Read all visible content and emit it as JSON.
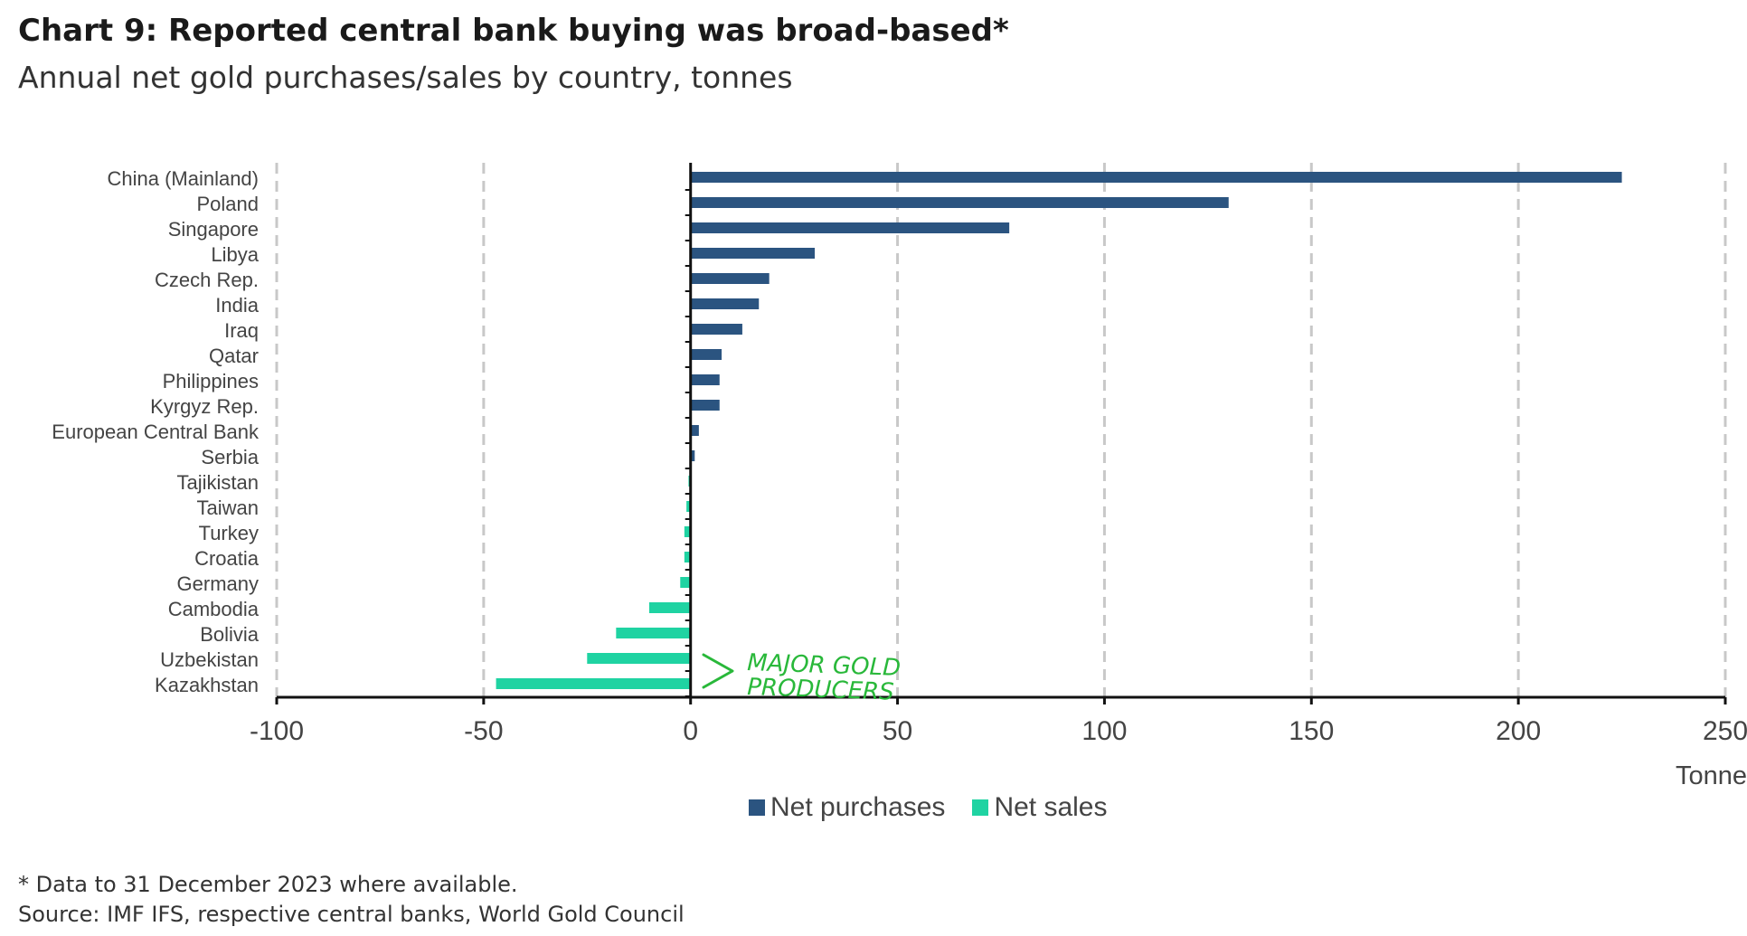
{
  "title": "Chart 9: Reported central bank buying was broad-based*",
  "subtitle": "Annual net gold purchases/sales by country, tonnes",
  "footnote": "* Data to 31 December 2023 where available.",
  "source": "Source: IMF IFS, respective central banks, World Gold Council",
  "annotation": "> MAJOR GOLD PRODUCERS",
  "colors": {
    "purchases": "#2b5480",
    "sales": "#1fd3a2",
    "annotation": "#29b83a"
  },
  "chart_data": {
    "type": "bar",
    "orientation": "horizontal",
    "categories": [
      "China (Mainland)",
      "Poland",
      "Singapore",
      "Libya",
      "Czech Rep.",
      "India",
      "Iraq",
      "Qatar",
      "Philippines",
      "Kyrgyz Rep.",
      "European Central Bank",
      "Serbia",
      "Tajikistan",
      "Taiwan",
      "Turkey",
      "Croatia",
      "Germany",
      "Cambodia",
      "Bolivia",
      "Uzbekistan",
      "Kazakhstan"
    ],
    "values": [
      225,
      130,
      77,
      30,
      19,
      16.5,
      12.5,
      7.5,
      7,
      7,
      2,
      1,
      -0.5,
      -1,
      -1.5,
      -1.5,
      -2.5,
      -10,
      -18,
      -25,
      -47
    ],
    "series": [
      {
        "name": "Net purchases",
        "color": "#2b5480"
      },
      {
        "name": "Net sales",
        "color": "#1fd3a2"
      }
    ],
    "xlim": [
      -100,
      250
    ],
    "xticks": [
      "-100",
      "-50",
      "0",
      "50",
      "100",
      "150",
      "200",
      "250"
    ],
    "xlabel": "Tonnes",
    "grid": true,
    "legend": "bottom-center"
  }
}
